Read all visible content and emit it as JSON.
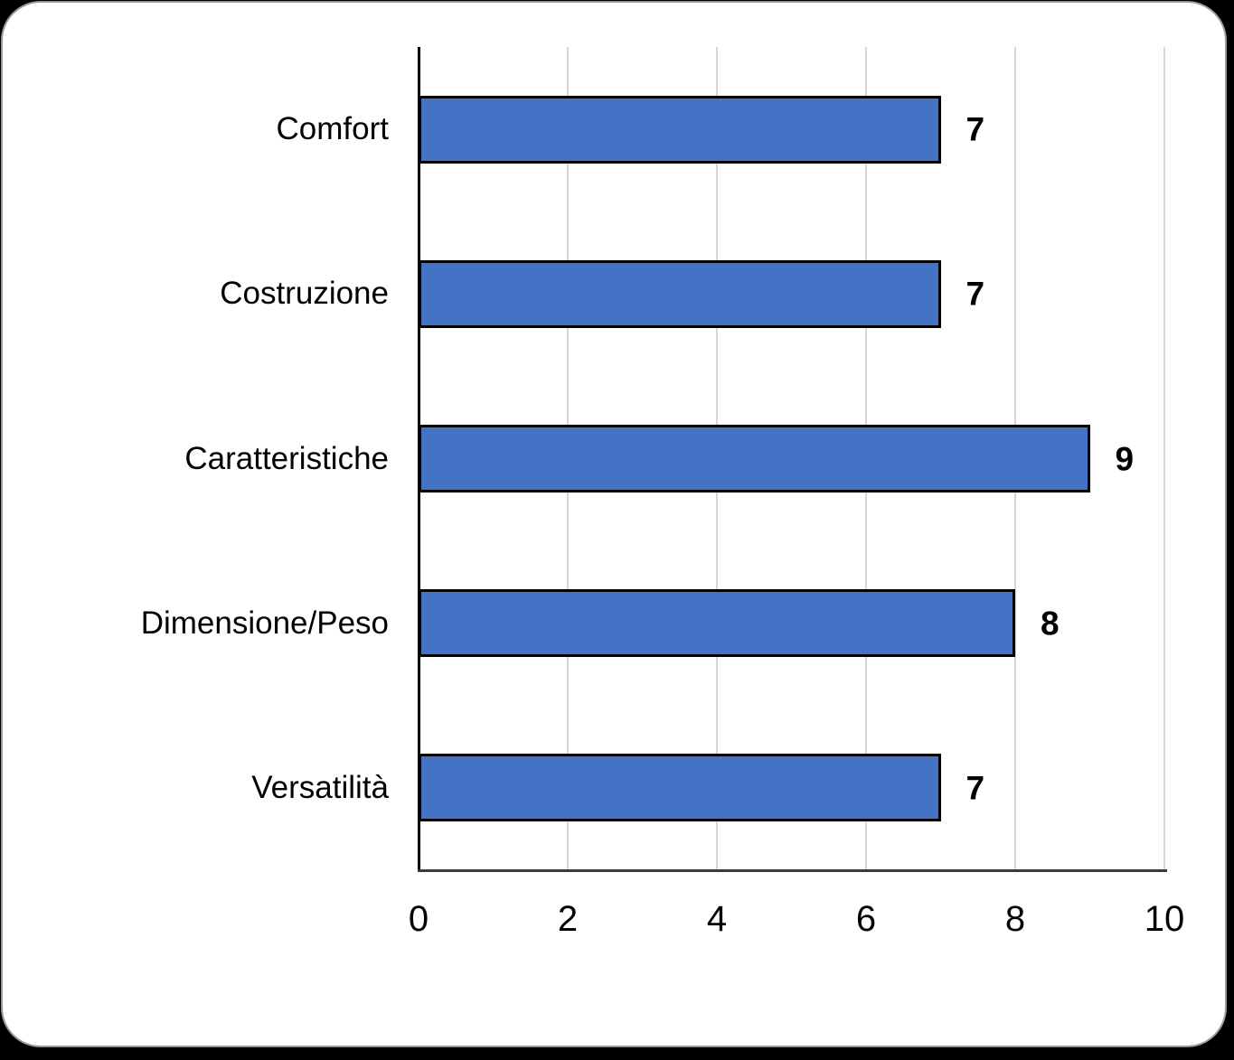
{
  "chart_data": {
    "type": "bar",
    "orientation": "horizontal",
    "title": "",
    "xlabel": "",
    "ylabel": "",
    "categories": [
      "Comfort",
      "Costruzione",
      "Caratteristiche",
      "Dimensione/Peso",
      "Versatilità"
    ],
    "values": [
      7,
      7,
      9,
      8,
      7
    ],
    "value_labels": [
      "7",
      "7",
      "9",
      "8",
      "7"
    ],
    "xlim": [
      0,
      10
    ],
    "xticks": [
      "0",
      "2",
      "4",
      "6",
      "8",
      "10"
    ],
    "xtick_values": [
      0,
      2,
      4,
      6,
      8,
      10
    ],
    "gridline_values": [
      2,
      4,
      6,
      8,
      10
    ],
    "grid": "vertical-on",
    "legend": "none",
    "colors": {
      "bar_fill": "#4472C4",
      "bar_border": "#000000",
      "gridline": "#d6d6d6",
      "y_axis_line": "#000000",
      "x_axis_line": "#3b3b3b",
      "card_background": "#ffffff",
      "card_border": "#9a9a9a",
      "page_background": "#000000",
      "text": "#000000"
    }
  }
}
